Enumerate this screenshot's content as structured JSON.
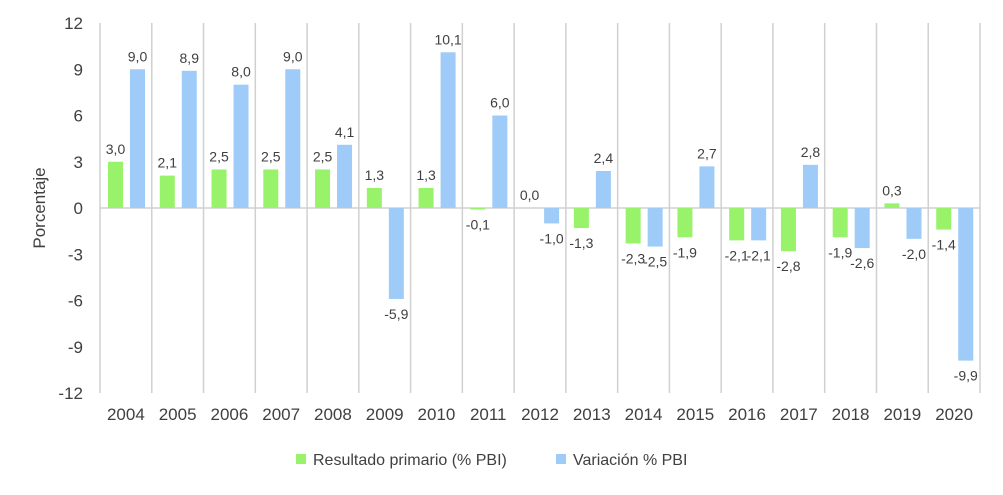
{
  "chart_data": {
    "type": "bar",
    "title": "",
    "xlabel": "",
    "ylabel": "Porcentaje",
    "ylim": [
      -12,
      12
    ],
    "yticks": [
      12,
      9,
      6,
      3,
      0,
      -3,
      -6,
      -9,
      -12
    ],
    "grid": "vertical category separators",
    "legend_position": "bottom",
    "categories": [
      "2004",
      "2005",
      "2006",
      "2007",
      "2008",
      "2009",
      "2010",
      "2011",
      "2012",
      "2013",
      "2014",
      "2015",
      "2016",
      "2017",
      "2018",
      "2019",
      "2020"
    ],
    "series": [
      {
        "name": "Resultado primario (% PBI)",
        "color": "#98F26A",
        "values": [
          3.0,
          2.1,
          2.5,
          2.5,
          2.5,
          1.3,
          1.3,
          -0.1,
          0.0,
          -1.3,
          -2.3,
          -1.9,
          -2.1,
          -2.8,
          -1.9,
          0.3,
          -1.4
        ],
        "labels": [
          "3,0",
          "2,1",
          "2,5",
          "2,5",
          "2,5",
          "1,3",
          "1,3",
          "-0,1",
          "0,0",
          "-1,3",
          "-2,3",
          "-1,9",
          "-2,1",
          "-2,8",
          "-1,9",
          "0,3",
          "-1,4"
        ]
      },
      {
        "name": "Variación % PBI",
        "color": "#9ECBF7",
        "values": [
          9.0,
          8.9,
          8.0,
          9.0,
          4.1,
          -5.9,
          10.1,
          6.0,
          -1.0,
          2.4,
          -2.5,
          2.7,
          -2.1,
          2.8,
          -2.6,
          -2.0,
          -9.9
        ],
        "labels": [
          "9,0",
          "8,9",
          "8,0",
          "9,0",
          "4,1",
          "-5,9",
          "10,1",
          "6,0",
          "-1,0",
          "2,4",
          "-2,5",
          "2,7",
          "-2,1",
          "2,8",
          "-2,6",
          "-2,0",
          "-9,9"
        ]
      }
    ]
  }
}
